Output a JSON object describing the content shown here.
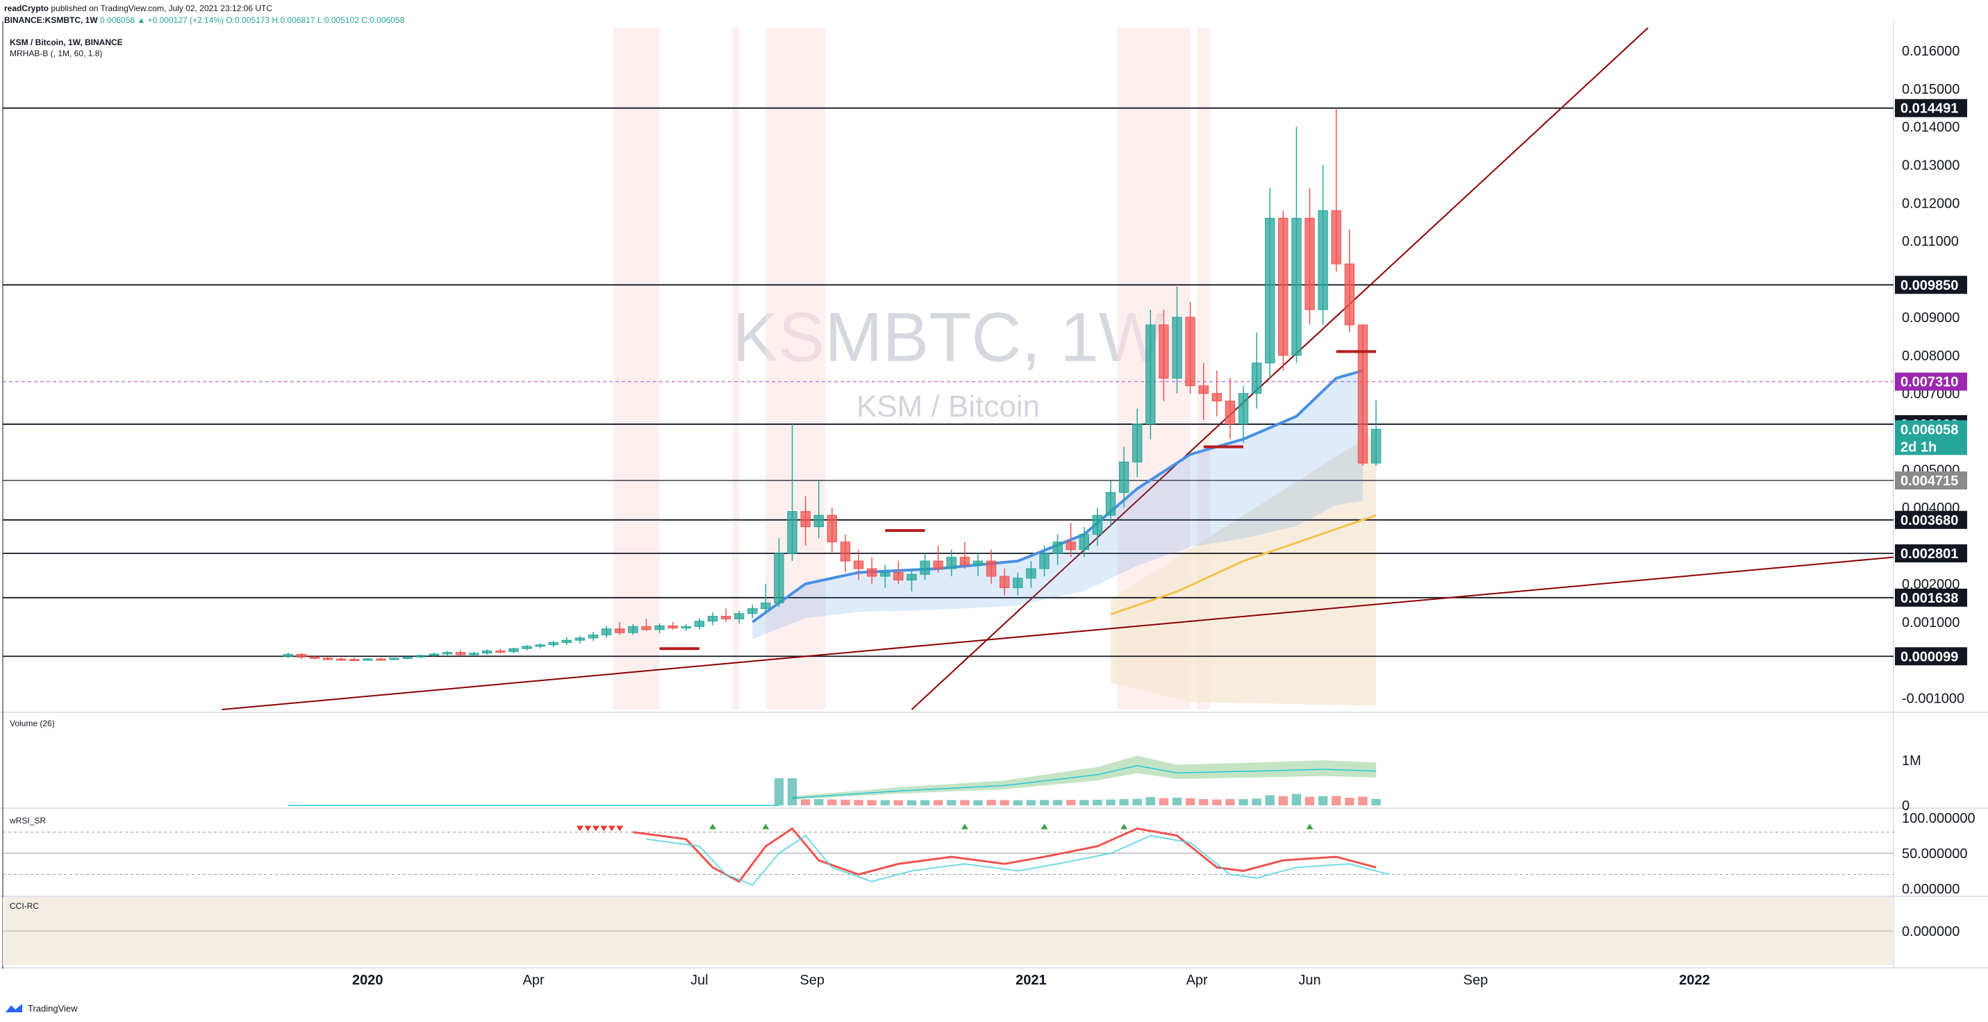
{
  "header": {
    "author": "readCrypto",
    "published": "published on TradingView.com, July 02, 2021 23:12:06 UTC",
    "symbol_line": "BINANCE:KSMBTC, 1W",
    "change": "0.006058 ▲ +0.000127 (+2.14%)",
    "ohlc": "O:0.005173 H:0.006817 L:0.005102 C:0.006058"
  },
  "pane_labels": {
    "main_title": "KSM / Bitcoin, 1W, BINANCE",
    "main_indicator": "MRHAB-B (, 1M, 60, 1.8)",
    "volume": "Volume (26)",
    "rsi": "wRSI_SR",
    "cci": "CCI-RC"
  },
  "watermark": {
    "symbol": "KSMBTC, 1W",
    "name": "KSM / Bitcoin"
  },
  "footer": {
    "brand": "TradingView"
  },
  "colors": {
    "up": "#26a69a",
    "down": "#ef5350",
    "ha_up": "#8fd3e6",
    "ha_down": "#f7a98a",
    "ema_blue": "#4a90e2",
    "ema_yellow": "#f5c24c",
    "trend": "#8b0000",
    "tag_black": "#131722",
    "tag_purple": "#9c27b0",
    "tag_gray": "#8a8a8a",
    "tag_teal": "#26a69a"
  },
  "chart_data": {
    "type": "candlestick",
    "y_axis_labels": [
      "0.016000",
      "0.015000",
      "0.014000",
      "0.013000",
      "0.012000",
      "0.011000",
      "0.009000",
      "0.008000",
      "0.007000",
      "0.005000",
      "0.004000",
      "0.002000",
      "0.001000",
      "-0.001000"
    ],
    "x_axis_labels": [
      "2020",
      "Apr",
      "Jul",
      "Sep",
      "2021",
      "Apr",
      "Jun",
      "Sep",
      "2022"
    ],
    "ylim": [
      -0.0013,
      0.0166
    ],
    "horizontal_levels": [
      {
        "value": 0.014491,
        "label": "0.014491",
        "style": "black"
      },
      {
        "value": 0.00985,
        "label": "0.009850",
        "style": "black"
      },
      {
        "value": 0.00731,
        "label": "0.007310",
        "style": "purple"
      },
      {
        "value": 0.006193,
        "label": "0.006193",
        "style": "black"
      },
      {
        "value": 0.004715,
        "label": "0.004715",
        "style": "gray"
      },
      {
        "value": 0.00368,
        "label": "0.003680",
        "style": "black"
      },
      {
        "value": 0.002801,
        "label": "0.002801",
        "style": "black"
      },
      {
        "value": 0.001638,
        "label": "0.001638",
        "style": "black"
      },
      {
        "value": 9.9e-05,
        "label": "0.000099",
        "style": "black"
      }
    ],
    "last_price": {
      "value": 0.006058,
      "label": "0.006058",
      "countdown": "2d 1h"
    },
    "candles": [
      {
        "t": 2019.88,
        "o": 0.0001,
        "h": 0.0002,
        "l": 5e-05,
        "c": 0.00015
      },
      {
        "t": 2019.9,
        "o": 0.00015,
        "h": 0.00018,
        "l": 3e-05,
        "c": 8e-05
      },
      {
        "t": 2019.92,
        "o": 8e-05,
        "h": 0.00012,
        "l": 2e-05,
        "c": 5e-05
      },
      {
        "t": 2019.94,
        "o": 5e-05,
        "h": 9e-05,
        "l": 0.0,
        "c": 3e-05
      },
      {
        "t": 2019.96,
        "o": 3e-05,
        "h": 7e-05,
        "l": 0.0,
        "c": 2e-05
      },
      {
        "t": 2019.98,
        "o": 2e-05,
        "h": 6e-05,
        "l": 0.0,
        "c": 1e-05
      },
      {
        "t": 2020.0,
        "o": 1e-05,
        "h": 5e-05,
        "l": -1e-05,
        "c": 3e-05
      },
      {
        "t": 2020.02,
        "o": 3e-05,
        "h": 6e-05,
        "l": 0.0,
        "c": 2e-05
      },
      {
        "t": 2020.04,
        "o": 2e-05,
        "h": 6e-05,
        "l": 0.0,
        "c": 5e-05
      },
      {
        "t": 2020.06,
        "o": 5e-05,
        "h": 0.0001,
        "l": 2e-05,
        "c": 8e-05
      },
      {
        "t": 2020.08,
        "o": 8e-05,
        "h": 0.00014,
        "l": 5e-05,
        "c": 0.00012
      },
      {
        "t": 2020.1,
        "o": 0.00012,
        "h": 0.0002,
        "l": 8e-05,
        "c": 0.00016
      },
      {
        "t": 2020.12,
        "o": 0.00016,
        "h": 0.00024,
        "l": 0.0001,
        "c": 0.0002
      },
      {
        "t": 2020.14,
        "o": 0.0002,
        "h": 0.00026,
        "l": 0.00012,
        "c": 0.00014
      },
      {
        "t": 2020.16,
        "o": 0.00014,
        "h": 0.00022,
        "l": 0.0001,
        "c": 0.00018
      },
      {
        "t": 2020.18,
        "o": 0.00018,
        "h": 0.00028,
        "l": 0.00014,
        "c": 0.00024
      },
      {
        "t": 2020.2,
        "o": 0.00024,
        "h": 0.0003,
        "l": 0.00018,
        "c": 0.00022
      },
      {
        "t": 2020.22,
        "o": 0.00022,
        "h": 0.00032,
        "l": 0.00018,
        "c": 0.0003
      },
      {
        "t": 2020.24,
        "o": 0.0003,
        "h": 0.0004,
        "l": 0.00025,
        "c": 0.00036
      },
      {
        "t": 2020.26,
        "o": 0.00036,
        "h": 0.00044,
        "l": 0.0003,
        "c": 0.0004
      },
      {
        "t": 2020.28,
        "o": 0.0004,
        "h": 0.0005,
        "l": 0.00034,
        "c": 0.00046
      },
      {
        "t": 2020.3,
        "o": 0.00046,
        "h": 0.0006,
        "l": 0.0004,
        "c": 0.00052
      },
      {
        "t": 2020.32,
        "o": 0.00052,
        "h": 0.00064,
        "l": 0.00044,
        "c": 0.00058
      },
      {
        "t": 2020.34,
        "o": 0.00058,
        "h": 0.00074,
        "l": 0.0005,
        "c": 0.00066
      },
      {
        "t": 2020.36,
        "o": 0.00066,
        "h": 0.0009,
        "l": 0.00058,
        "c": 0.00082
      },
      {
        "t": 2020.38,
        "o": 0.00082,
        "h": 0.001,
        "l": 0.00066,
        "c": 0.00072
      },
      {
        "t": 2020.4,
        "o": 0.00072,
        "h": 0.00095,
        "l": 0.00066,
        "c": 0.00088
      },
      {
        "t": 2020.42,
        "o": 0.00088,
        "h": 0.00108,
        "l": 0.00076,
        "c": 0.0008
      },
      {
        "t": 2020.44,
        "o": 0.0008,
        "h": 0.00096,
        "l": 0.0007,
        "c": 0.0009
      },
      {
        "t": 2020.46,
        "o": 0.0009,
        "h": 0.001,
        "l": 0.0008,
        "c": 0.00084
      },
      {
        "t": 2020.48,
        "o": 0.00084,
        "h": 0.00094,
        "l": 0.00076,
        "c": 0.00088
      },
      {
        "t": 2020.5,
        "o": 0.00088,
        "h": 0.0011,
        "l": 0.0008,
        "c": 0.00102
      },
      {
        "t": 2020.52,
        "o": 0.00102,
        "h": 0.00125,
        "l": 0.00092,
        "c": 0.00115
      },
      {
        "t": 2020.54,
        "o": 0.00115,
        "h": 0.00135,
        "l": 0.001,
        "c": 0.00108
      },
      {
        "t": 2020.56,
        "o": 0.00108,
        "h": 0.0013,
        "l": 0.00096,
        "c": 0.00122
      },
      {
        "t": 2020.58,
        "o": 0.00122,
        "h": 0.00145,
        "l": 0.0011,
        "c": 0.00135
      },
      {
        "t": 2020.6,
        "o": 0.00135,
        "h": 0.002,
        "l": 0.0012,
        "c": 0.0015
      },
      {
        "t": 2020.62,
        "o": 0.0015,
        "h": 0.0032,
        "l": 0.0014,
        "c": 0.0028
      },
      {
        "t": 2020.64,
        "o": 0.0028,
        "h": 0.0062,
        "l": 0.0026,
        "c": 0.0039
      },
      {
        "t": 2020.66,
        "o": 0.0039,
        "h": 0.0043,
        "l": 0.003,
        "c": 0.0035
      },
      {
        "t": 2020.68,
        "o": 0.0035,
        "h": 0.0047,
        "l": 0.0032,
        "c": 0.0038
      },
      {
        "t": 2020.7,
        "o": 0.0038,
        "h": 0.004,
        "l": 0.0028,
        "c": 0.0031
      },
      {
        "t": 2020.72,
        "o": 0.0031,
        "h": 0.0033,
        "l": 0.0023,
        "c": 0.0026
      },
      {
        "t": 2020.74,
        "o": 0.0026,
        "h": 0.0029,
        "l": 0.0021,
        "c": 0.0024
      },
      {
        "t": 2020.76,
        "o": 0.0024,
        "h": 0.0027,
        "l": 0.002,
        "c": 0.0022
      },
      {
        "t": 2020.78,
        "o": 0.0022,
        "h": 0.0025,
        "l": 0.0019,
        "c": 0.0023
      },
      {
        "t": 2020.8,
        "o": 0.0023,
        "h": 0.0026,
        "l": 0.002,
        "c": 0.0021
      },
      {
        "t": 2020.82,
        "o": 0.0021,
        "h": 0.0024,
        "l": 0.0018,
        "c": 0.00225
      },
      {
        "t": 2020.84,
        "o": 0.00225,
        "h": 0.0028,
        "l": 0.0021,
        "c": 0.0026
      },
      {
        "t": 2020.86,
        "o": 0.0026,
        "h": 0.003,
        "l": 0.0023,
        "c": 0.0024
      },
      {
        "t": 2020.88,
        "o": 0.0024,
        "h": 0.0029,
        "l": 0.0022,
        "c": 0.0027
      },
      {
        "t": 2020.9,
        "o": 0.0027,
        "h": 0.0031,
        "l": 0.0024,
        "c": 0.0025
      },
      {
        "t": 2020.92,
        "o": 0.0025,
        "h": 0.0028,
        "l": 0.0022,
        "c": 0.0026
      },
      {
        "t": 2020.94,
        "o": 0.0026,
        "h": 0.0029,
        "l": 0.002,
        "c": 0.0022
      },
      {
        "t": 2020.96,
        "o": 0.0022,
        "h": 0.0024,
        "l": 0.0017,
        "c": 0.0019
      },
      {
        "t": 2020.98,
        "o": 0.0019,
        "h": 0.0023,
        "l": 0.0017,
        "c": 0.00215
      },
      {
        "t": 2021.0,
        "o": 0.00215,
        "h": 0.0026,
        "l": 0.0019,
        "c": 0.0024
      },
      {
        "t": 2021.02,
        "o": 0.0024,
        "h": 0.003,
        "l": 0.0022,
        "c": 0.0028
      },
      {
        "t": 2021.04,
        "o": 0.0028,
        "h": 0.0033,
        "l": 0.0025,
        "c": 0.0031
      },
      {
        "t": 2021.06,
        "o": 0.0031,
        "h": 0.0036,
        "l": 0.0027,
        "c": 0.0029
      },
      {
        "t": 2021.08,
        "o": 0.0029,
        "h": 0.0035,
        "l": 0.0027,
        "c": 0.0033
      },
      {
        "t": 2021.1,
        "o": 0.0033,
        "h": 0.004,
        "l": 0.003,
        "c": 0.0038
      },
      {
        "t": 2021.12,
        "o": 0.0038,
        "h": 0.0047,
        "l": 0.0035,
        "c": 0.0044
      },
      {
        "t": 2021.14,
        "o": 0.0044,
        "h": 0.0056,
        "l": 0.004,
        "c": 0.0052
      },
      {
        "t": 2021.16,
        "o": 0.0052,
        "h": 0.0066,
        "l": 0.0048,
        "c": 0.0062
      },
      {
        "t": 2021.18,
        "o": 0.0062,
        "h": 0.0092,
        "l": 0.0058,
        "c": 0.0088
      },
      {
        "t": 2021.2,
        "o": 0.0088,
        "h": 0.0092,
        "l": 0.0068,
        "c": 0.0074
      },
      {
        "t": 2021.22,
        "o": 0.0074,
        "h": 0.0098,
        "l": 0.007,
        "c": 0.009
      },
      {
        "t": 2021.24,
        "o": 0.009,
        "h": 0.0094,
        "l": 0.007,
        "c": 0.0072
      },
      {
        "t": 2021.26,
        "o": 0.0072,
        "h": 0.0078,
        "l": 0.0063,
        "c": 0.007
      },
      {
        "t": 2021.28,
        "o": 0.007,
        "h": 0.0076,
        "l": 0.0064,
        "c": 0.0068
      },
      {
        "t": 2021.3,
        "o": 0.0068,
        "h": 0.0074,
        "l": 0.0058,
        "c": 0.0062
      },
      {
        "t": 2021.32,
        "o": 0.0062,
        "h": 0.0072,
        "l": 0.0057,
        "c": 0.007
      },
      {
        "t": 2021.34,
        "o": 0.007,
        "h": 0.0086,
        "l": 0.0066,
        "c": 0.0078
      },
      {
        "t": 2021.36,
        "o": 0.0078,
        "h": 0.0124,
        "l": 0.0074,
        "c": 0.0116
      },
      {
        "t": 2021.38,
        "o": 0.0116,
        "h": 0.0118,
        "l": 0.0076,
        "c": 0.008
      },
      {
        "t": 2021.4,
        "o": 0.008,
        "h": 0.014,
        "l": 0.0078,
        "c": 0.0116
      },
      {
        "t": 2021.42,
        "o": 0.0116,
        "h": 0.0124,
        "l": 0.0088,
        "c": 0.0092
      },
      {
        "t": 2021.44,
        "o": 0.0092,
        "h": 0.013,
        "l": 0.0088,
        "c": 0.0118
      },
      {
        "t": 2021.46,
        "o": 0.0118,
        "h": 0.01449,
        "l": 0.0102,
        "c": 0.0104
      },
      {
        "t": 2021.48,
        "o": 0.0104,
        "h": 0.0113,
        "l": 0.0086,
        "c": 0.0088
      },
      {
        "t": 2021.5,
        "o": 0.0088,
        "h": 0.0088,
        "l": 0.0051,
        "c": 0.00517
      },
      {
        "t": 2021.52,
        "o": 0.00517,
        "h": 0.00682,
        "l": 0.0051,
        "c": 0.00606
      }
    ],
    "volume": {
      "label": "Volume (26)",
      "y_labels": [
        "1M",
        "0"
      ],
      "ylim": [
        0,
        2000000
      ]
    },
    "rsi": {
      "label": "wRSI_SR",
      "y_labels": [
        "100.000000",
        "50.000000",
        "0.000000"
      ],
      "ylim": [
        -10,
        110
      ]
    },
    "cci": {
      "label": "CCI-RC",
      "y_labels": [
        "0.000000"
      ]
    }
  }
}
